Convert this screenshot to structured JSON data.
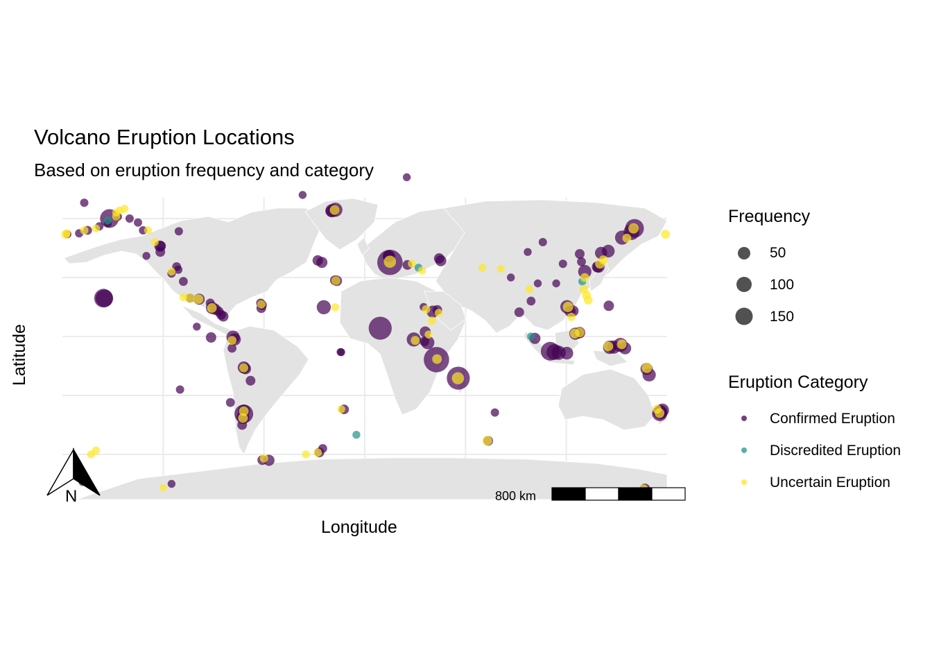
{
  "title": "Volcano Eruption Locations",
  "subtitle": "Based on eruption frequency and category",
  "xlabel": "Longitude",
  "ylabel": "Latitude",
  "north_arrow_label": "N",
  "scale_bar_label": "800 km",
  "legend": {
    "size_title": "Frequency",
    "size_items": [
      {
        "label": "50",
        "value": 50
      },
      {
        "label": "100",
        "value": 100
      },
      {
        "label": "150",
        "value": 150
      }
    ],
    "category_title": "Eruption Category",
    "category_items": [
      {
        "label": "Confirmed Eruption",
        "color": "#440154"
      },
      {
        "label": "Discredited Eruption",
        "color": "#21918c"
      },
      {
        "label": "Uncertain Eruption",
        "color": "#fde725"
      }
    ]
  },
  "colors": {
    "land": "#e3e3e3",
    "grid": "#ebebeb",
    "confirmed": "#440154",
    "discredited": "#21918c",
    "uncertain": "#fde725"
  },
  "chart_data": {
    "type": "scatter",
    "title": "Volcano Eruption Locations",
    "subtitle": "Based on eruption frequency and category",
    "xlabel": "Longitude",
    "ylabel": "Latitude",
    "xlim": [
      -180,
      180
    ],
    "ylim": [
      -90,
      90
    ],
    "size_variable": "Frequency",
    "color_variable": "Eruption Category",
    "series": [
      {
        "name": "Confirmed Eruption",
        "points": [
          [
            -177,
            52,
            10
          ],
          [
            -170,
            52.5,
            12
          ],
          [
            -165,
            54,
            15
          ],
          [
            -158,
            56,
            12
          ],
          [
            -153,
            57.5,
            10
          ],
          [
            -152,
            60,
            120
          ],
          [
            -147,
            61,
            12
          ],
          [
            -135,
            58,
            12
          ],
          [
            -122,
            46,
            30
          ],
          [
            -121.5,
            46,
            25
          ],
          [
            -121.7,
            43,
            20
          ],
          [
            -155.5,
            19.5,
            120
          ],
          [
            -155,
            19.4,
            100
          ],
          [
            -104,
            19.5,
            15
          ],
          [
            -98.6,
            19,
            30
          ],
          [
            -92,
            17,
            15
          ],
          [
            -90.9,
            14.5,
            40
          ],
          [
            -89,
            13.8,
            30
          ],
          [
            -87,
            12.7,
            20
          ],
          [
            -85.5,
            11,
            20
          ],
          [
            -84.2,
            10.2,
            25
          ],
          [
            -78.4,
            -0.4,
            50
          ],
          [
            -77.4,
            -1.5,
            40
          ],
          [
            -91.5,
            -0.5,
            25
          ],
          [
            -72,
            -15.8,
            40
          ],
          [
            -71,
            -16.4,
            30
          ],
          [
            -68,
            -22.5,
            20
          ],
          [
            -71.9,
            -37.8,
            40
          ],
          [
            -72,
            -39.4,
            120
          ],
          [
            -72.5,
            -41.3,
            45
          ],
          [
            -73,
            -45,
            20
          ],
          [
            -61.2,
            16,
            20
          ],
          [
            -61.6,
            14.4,
            20
          ],
          [
            -62,
            17,
            15
          ],
          [
            -16.6,
            28.3,
            25
          ],
          [
            -17.8,
            28.6,
            20
          ],
          [
            -19.5,
            64,
            50
          ],
          [
            -17.5,
            64.5,
            60
          ],
          [
            -20,
            63.7,
            30
          ],
          [
            -28,
            38.7,
            25
          ],
          [
            -25.5,
            37.7,
            30
          ],
          [
            -24.4,
            14.9,
            60
          ],
          [
            -14,
            -8,
            10
          ],
          [
            -12.3,
            -37.1,
            20
          ],
          [
            -14.4,
            -7.9,
            10
          ],
          [
            15,
            37.7,
            250
          ],
          [
            14.4,
            40.8,
            40
          ],
          [
            25.4,
            36.4,
            20
          ],
          [
            9.2,
            4.2,
            200
          ],
          [
            14.1,
            40.8,
            30
          ],
          [
            40.5,
            12.6,
            40
          ],
          [
            36,
            2.3,
            30
          ],
          [
            37.5,
            -3.1,
            50
          ],
          [
            29.2,
            -1.5,
            60
          ],
          [
            35.5,
            -2.5,
            20
          ],
          [
            43.2,
            13.5,
            20
          ],
          [
            42.7,
            -11.8,
            250
          ],
          [
            45.3,
            38.5,
            30
          ],
          [
            44.3,
            39.7,
            25
          ],
          [
            55.7,
            -21.2,
            200
          ],
          [
            77.5,
            -38.7,
            12
          ],
          [
            73.5,
            -53.1,
            20
          ],
          [
            92,
            12.3,
            20
          ],
          [
            101.3,
            -1.0,
            30
          ],
          [
            110.4,
            -7.5,
            120
          ],
          [
            112.9,
            -7.9,
            80
          ],
          [
            115.5,
            -8.3,
            60
          ],
          [
            120.3,
            -8.5,
            45
          ],
          [
            125.4,
            1.4,
            40
          ],
          [
            124,
            13,
            30
          ],
          [
            120.4,
            15.1,
            50
          ],
          [
            122.2,
            12.8,
            30
          ],
          [
            128,
            2,
            30
          ],
          [
            127.9,
            1.7,
            25
          ],
          [
            131,
            33,
            50
          ],
          [
            138.5,
            35.4,
            30
          ],
          [
            139.3,
            35.4,
            35
          ],
          [
            140.7,
            42.5,
            40
          ],
          [
            145,
            43.4,
            45
          ],
          [
            153.2,
            50.3,
            60
          ],
          [
            160.6,
            55,
            120
          ],
          [
            158.8,
            53.1,
            80
          ],
          [
            145.3,
            15.6,
            25
          ],
          [
            145.8,
            -5.5,
            50
          ],
          [
            148.2,
            -5.4,
            50
          ],
          [
            152.2,
            -4.3,
            60
          ],
          [
            155,
            -6,
            40
          ],
          [
            167.8,
            -16.5,
            40
          ],
          [
            169.3,
            -19.5,
            50
          ],
          [
            176,
            -38.5,
            60
          ],
          [
            175.6,
            -39.2,
            70
          ],
          [
            177.2,
            -37.5,
            50
          ],
          [
            166.8,
            -77.5,
            25
          ],
          [
            -168,
            -74,
            10
          ],
          [
            -115,
            -75,
            10
          ],
          [
            -57,
            -63,
            30
          ],
          [
            -61,
            -62.9,
            20
          ],
          [
            -25,
            -57,
            15
          ],
          [
            -27,
            -59,
            20
          ],
          [
            -79,
            -6,
            15
          ],
          [
            -110.7,
            53.5,
            12
          ],
          [
            -132,
            54,
            12
          ],
          [
            -140,
            60,
            12
          ],
          [
            -167,
            68,
            12
          ],
          [
            -130,
            41,
            10
          ],
          [
            -115,
            32,
            12
          ],
          [
            -112,
            35.5,
            15
          ],
          [
            -111,
            34,
            12
          ],
          [
            -108,
            28,
            15
          ],
          [
            -100,
            5,
            10
          ],
          [
            35,
            15,
            10
          ],
          [
            103,
            27,
            10
          ],
          [
            129,
            38,
            15
          ],
          [
            128,
            42,
            20
          ],
          [
            106,
            48,
            12
          ],
          [
            97,
            43,
            10
          ],
          [
            114,
            27,
            10
          ],
          [
            118,
            37,
            12
          ],
          [
            99,
            18,
            15
          ],
          [
            87,
            30,
            10
          ],
          [
            25,
            81,
            10
          ],
          [
            -37,
            72,
            10
          ],
          [
            -110,
            -27,
            12
          ],
          [
            -80,
            -33.6,
            15
          ]
        ]
      },
      {
        "name": "Discredited Eruption",
        "points": [
          [
            -153,
            59,
            10
          ],
          [
            32,
            35,
            10
          ],
          [
            -5,
            -50,
            10
          ],
          [
            129.5,
            28,
            10
          ],
          [
            99,
            0,
            10
          ]
        ]
      },
      {
        "name": "Uncertain Eruption",
        "points": [
          [
            -177.5,
            52.5,
            10
          ],
          [
            -167,
            54,
            12
          ],
          [
            -160,
            55,
            10
          ],
          [
            -148,
            63,
            10
          ],
          [
            -143,
            65,
            10
          ],
          [
            -146,
            64,
            10
          ],
          [
            -125,
            48,
            10
          ],
          [
            -108,
            20,
            10
          ],
          [
            -104,
            19.5,
            15
          ],
          [
            -99,
            19,
            20
          ],
          [
            -91,
            14.5,
            20
          ],
          [
            -61.6,
            16.3,
            12
          ],
          [
            -79,
            -2,
            15
          ],
          [
            -72,
            -16,
            15
          ],
          [
            -72,
            -38,
            20
          ],
          [
            -72.5,
            -41.5,
            20
          ],
          [
            -60,
            -62,
            12
          ],
          [
            -28,
            -59,
            12
          ],
          [
            -14,
            -37,
            10
          ],
          [
            -17.2,
            28.4,
            15
          ],
          [
            -18,
            64.3,
            20
          ],
          [
            -35,
            -60,
            10
          ],
          [
            -120,
            -77,
            8
          ],
          [
            -163,
            -60,
            10
          ],
          [
            -160,
            -58,
            10
          ],
          [
            -17.6,
            14.9,
            10
          ],
          [
            15,
            38,
            40
          ],
          [
            34,
            33.5,
            10
          ],
          [
            28,
            37,
            10
          ],
          [
            36.5,
            13.8,
            12
          ],
          [
            44,
            12,
            10
          ],
          [
            40,
            8,
            12
          ],
          [
            38,
            1,
            10
          ],
          [
            30,
            -2,
            15
          ],
          [
            43,
            -11.5,
            20
          ],
          [
            55.5,
            -21.3,
            40
          ],
          [
            73,
            -53,
            20
          ],
          [
            70,
            35,
            10
          ],
          [
            81,
            34.5,
            10
          ],
          [
            98,
            24,
            10
          ],
          [
            123,
            10,
            12
          ],
          [
            121,
            15,
            25
          ],
          [
            125,
            1.5,
            20
          ],
          [
            128,
            2,
            20
          ],
          [
            131,
            30,
            15
          ],
          [
            130.5,
            24,
            15
          ],
          [
            132,
            21,
            15
          ],
          [
            133,
            18.5,
            15
          ],
          [
            140,
            37,
            20
          ],
          [
            142,
            39,
            15
          ],
          [
            156,
            50,
            15
          ],
          [
            160,
            55,
            25
          ],
          [
            179,
            52,
            15
          ],
          [
            145,
            -5,
            20
          ],
          [
            153,
            -4,
            20
          ],
          [
            168,
            -16,
            25
          ],
          [
            174,
            -37,
            15
          ],
          [
            175.5,
            -39,
            20
          ],
          [
            166,
            -77.5,
            15
          ],
          [
            -115,
            33,
            10
          ],
          [
            -129,
            54,
            10
          ],
          [
            -148,
            61,
            10
          ],
          [
            -178,
            52,
            15
          ]
        ]
      }
    ],
    "point_order": "longitude, latitude, frequency"
  }
}
